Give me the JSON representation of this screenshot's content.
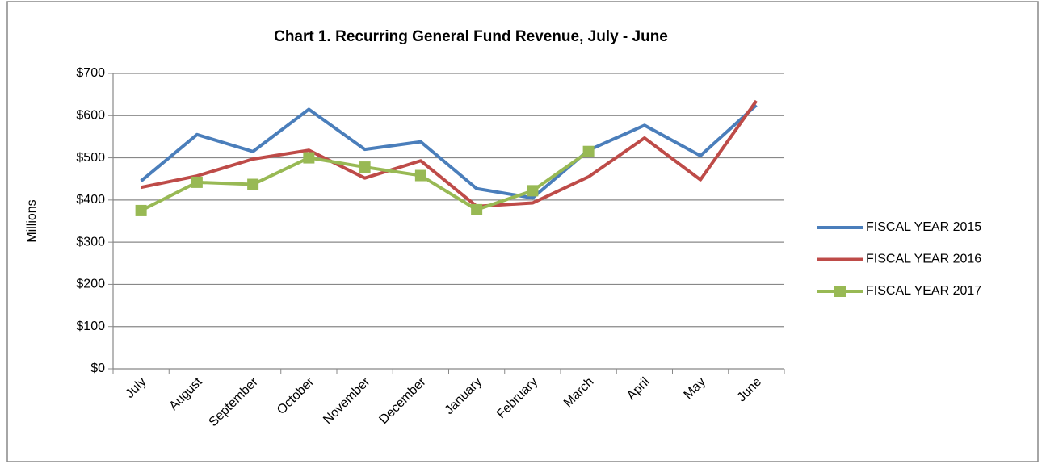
{
  "chart_data": {
    "type": "line",
    "title": "Chart 1. Recurring General Fund Revenue,  July - June",
    "y_label": "Millions",
    "categories": [
      "July",
      "August",
      "September",
      "October",
      "November",
      "December",
      "January",
      "February",
      "March",
      "April",
      "May",
      "June"
    ],
    "series": [
      {
        "name": "FISCAL YEAR 2015",
        "color": "#4a7ebb",
        "marker": false,
        "values": [
          445,
          555,
          515,
          615,
          520,
          538,
          427,
          405,
          518,
          577,
          505,
          625
        ]
      },
      {
        "name": "FISCAL YEAR 2016",
        "color": "#be4b48",
        "marker": false,
        "values": [
          430,
          457,
          497,
          518,
          452,
          493,
          385,
          393,
          455,
          547,
          448,
          635
        ]
      },
      {
        "name": "FISCAL YEAR 2017",
        "color": "#98b954",
        "marker": true,
        "values": [
          375,
          442,
          437,
          500,
          478,
          458,
          377,
          422,
          515,
          null,
          null,
          null
        ]
      }
    ],
    "ylim": [
      0,
      700
    ],
    "yticks": [
      {
        "value": 0,
        "label": "$0"
      },
      {
        "value": 100,
        "label": "$100"
      },
      {
        "value": 200,
        "label": "$200"
      },
      {
        "value": 300,
        "label": "$300"
      },
      {
        "value": 400,
        "label": "$400"
      },
      {
        "value": 500,
        "label": "$500"
      },
      {
        "value": 600,
        "label": "$600"
      },
      {
        "value": 700,
        "label": "$700"
      }
    ],
    "grid": true,
    "legend": "right"
  }
}
